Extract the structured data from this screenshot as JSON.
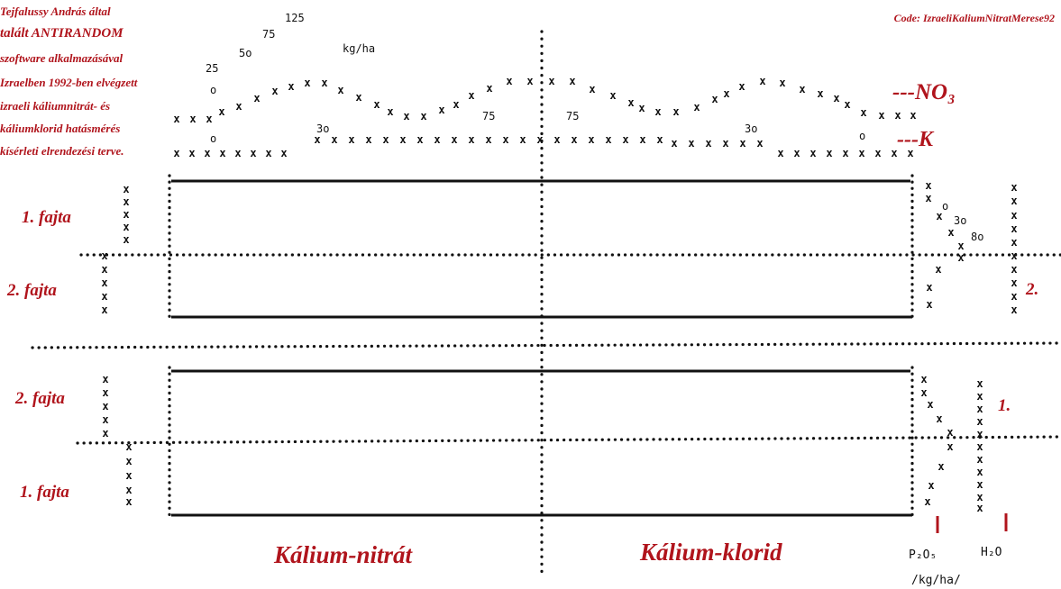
{
  "header": {
    "left_lines": [
      "Tejfalussy András által",
      "talált ANTIRANDOM",
      "szoftware alkalmazásával",
      "Izraelben 1992-ben elvégzett",
      "izraeli káliumnitrát- és",
      "káliumklorid hatásmérés",
      "kísérleti elrendezési terve."
    ],
    "code": "Code: IzraeliKaliumNitratMerese92"
  },
  "top_doses": {
    "d25": "25",
    "d50": "5o",
    "d75": "75",
    "d125": "125",
    "unit": "kg/ha",
    "zero": "o"
  },
  "curve_labels": {
    "no3": "---NO₃",
    "k": "---K",
    "k30_left": "3o",
    "k75_left": "75",
    "k75_right": "75",
    "k30_right": "3o",
    "k0_left": "o",
    "k0_right": "o"
  },
  "blocks": {
    "row_1_top": "1. fajta",
    "row_2_top": "2. fajta",
    "row_2_bottom": "2. fajta",
    "row_1_bottom": "1. fajta"
  },
  "right_side": {
    "p_zero": "o",
    "p30": "3o",
    "p80": "8o",
    "h2o_top_label": "2.",
    "h2o_bottom_label": "1.",
    "p2o5": "P₂O₅",
    "h2o": "H₂O",
    "unit": "/kg/ha/"
  },
  "bottom_labels": {
    "kno3": "Kálium-nitrát",
    "kcl": "Kálium-klorid"
  },
  "mark_char": "x",
  "colors": {
    "accent_red": "#b0141c",
    "ink": "#111111"
  }
}
